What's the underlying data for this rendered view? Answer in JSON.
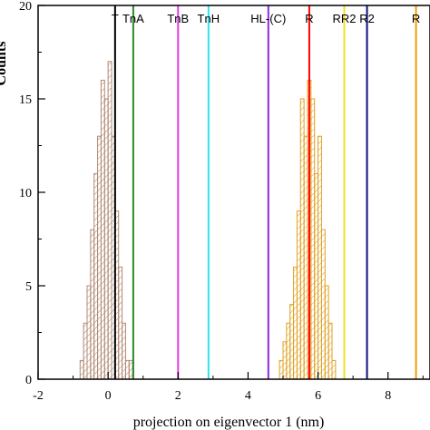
{
  "chart_data": {
    "type": "bar",
    "xlabel": "projection on eigenvector 1 (nm)",
    "ylabel": "Counts",
    "xlim": [
      -2,
      9.2
    ],
    "ylim": [
      0,
      20
    ],
    "xticks": [
      -2,
      0,
      2,
      4,
      6,
      8
    ],
    "yticks": [
      0,
      5,
      10,
      15,
      20
    ],
    "grid": false,
    "bin_width": 0.1,
    "series": [
      {
        "color": "#b08870",
        "hatch": "diagonal",
        "bins": [
          {
            "x": -0.8,
            "count": 1
          },
          {
            "x": -0.7,
            "count": 3
          },
          {
            "x": -0.6,
            "count": 5
          },
          {
            "x": -0.5,
            "count": 8
          },
          {
            "x": -0.4,
            "count": 11
          },
          {
            "x": -0.3,
            "count": 13
          },
          {
            "x": -0.2,
            "count": 16
          },
          {
            "x": -0.1,
            "count": 15
          },
          {
            "x": 0.0,
            "count": 17
          },
          {
            "x": 0.1,
            "count": 13
          },
          {
            "x": 0.2,
            "count": 9
          },
          {
            "x": 0.3,
            "count": 6
          },
          {
            "x": 0.4,
            "count": 3
          },
          {
            "x": 0.5,
            "count": 1
          },
          {
            "x": 0.6,
            "count": 1
          }
        ]
      },
      {
        "color": "#e0a020",
        "hatch": "diagonal",
        "bins": [
          {
            "x": 4.9,
            "count": 1
          },
          {
            "x": 5.0,
            "count": 2
          },
          {
            "x": 5.1,
            "count": 3
          },
          {
            "x": 5.2,
            "count": 4
          },
          {
            "x": 5.3,
            "count": 6
          },
          {
            "x": 5.4,
            "count": 9
          },
          {
            "x": 5.5,
            "count": 15
          },
          {
            "x": 5.6,
            "count": 13
          },
          {
            "x": 5.7,
            "count": 16
          },
          {
            "x": 5.8,
            "count": 15
          },
          {
            "x": 5.9,
            "count": 11
          },
          {
            "x": 6.0,
            "count": 13
          },
          {
            "x": 6.1,
            "count": 8
          },
          {
            "x": 6.2,
            "count": 5
          },
          {
            "x": 6.3,
            "count": 3
          },
          {
            "x": 6.4,
            "count": 1
          }
        ]
      }
    ],
    "reference_lines": [
      {
        "label": "T",
        "x": 0.2,
        "color": "#000000"
      },
      {
        "label": "TnA",
        "x": 0.72,
        "color": "#2a8a2a"
      },
      {
        "label": "TnB",
        "x": 2.0,
        "color": "#e040e0"
      },
      {
        "label": "TnH",
        "x": 2.87,
        "color": "#30e0f0"
      },
      {
        "label": "HL-(C)",
        "x": 4.58,
        "color": "#8a2be2"
      },
      {
        "label": "R",
        "x": 5.75,
        "color": "#ff0000"
      },
      {
        "label": "RR2",
        "x": 6.75,
        "color": "#f0e020"
      },
      {
        "label": "R2",
        "x": 7.4,
        "color": "#101080"
      },
      {
        "label": "R",
        "x": 8.8,
        "color": "#f0a000"
      }
    ]
  }
}
